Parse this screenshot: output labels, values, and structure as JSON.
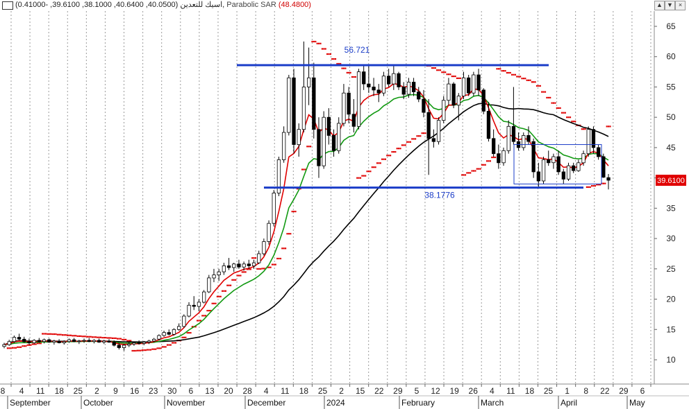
{
  "title_bar": {
    "symbol": "اسيك للتعدين",
    "ohlc": "(40.0500, 40.6400, 38.1000, 39.6100, -0.41000),",
    "indicator": "Parabolic SAR",
    "indicator_value": "(48.4800)"
  },
  "colors": {
    "up_candle": "#ffffff",
    "down_candle": "#000000",
    "ma_red": "#e00000",
    "ma_green": "#119911",
    "ma_black": "#000000",
    "sar": "#e00000",
    "annotation": "#1a3cc8",
    "last_price_bg": "#e00000"
  },
  "chart_data": {
    "type": "candlestick",
    "y_axis": {
      "min": 5,
      "max": 67,
      "ticks": [
        10,
        15,
        20,
        25,
        30,
        35,
        40,
        45,
        50,
        55,
        60,
        65
      ],
      "position": "right"
    },
    "x_day_labels": [
      "8",
      "4",
      "11",
      "18",
      "25",
      "2",
      "9",
      "16",
      "23",
      "30",
      "6",
      "13",
      "20",
      "28",
      "4",
      "11",
      "18",
      "25",
      "2",
      "15",
      "22",
      "29",
      "5",
      "12",
      "19",
      "26",
      "4",
      "11",
      "18",
      "25",
      "1",
      "8",
      "22",
      "29",
      "6"
    ],
    "x_month_labels": [
      "September",
      "October",
      "November",
      "December",
      "2024",
      "February",
      "March",
      "April",
      "May"
    ],
    "candles": [
      [
        12.2,
        12.8,
        11.9,
        12.5
      ],
      [
        12.5,
        13.3,
        12.3,
        13.0
      ],
      [
        13.0,
        14.0,
        12.8,
        13.7
      ],
      [
        13.7,
        14.3,
        13.2,
        13.4
      ],
      [
        13.4,
        13.8,
        12.8,
        13.0
      ],
      [
        13.0,
        13.5,
        12.5,
        12.8
      ],
      [
        12.8,
        13.4,
        12.6,
        13.2
      ],
      [
        13.2,
        13.6,
        12.8,
        13.0
      ],
      [
        13.0,
        13.5,
        12.7,
        13.3
      ],
      [
        13.3,
        13.5,
        12.8,
        12.9
      ],
      [
        12.9,
        13.3,
        12.5,
        13.1
      ],
      [
        13.1,
        13.4,
        12.7,
        12.8
      ],
      [
        12.8,
        13.2,
        12.5,
        13.0
      ],
      [
        13.0,
        13.5,
        12.8,
        13.3
      ],
      [
        13.3,
        13.6,
        12.9,
        13.0
      ],
      [
        13.0,
        13.3,
        12.6,
        13.1
      ],
      [
        13.1,
        13.5,
        12.8,
        13.2
      ],
      [
        13.2,
        13.6,
        12.9,
        13.0
      ],
      [
        13.0,
        13.4,
        12.7,
        13.2
      ],
      [
        13.2,
        13.5,
        12.8,
        12.9
      ],
      [
        12.9,
        13.3,
        12.6,
        13.1
      ],
      [
        13.1,
        13.4,
        12.8,
        12.9
      ],
      [
        12.9,
        13.2,
        12.2,
        12.4
      ],
      [
        12.4,
        12.8,
        11.7,
        12.0
      ],
      [
        12.0,
        12.6,
        11.5,
        12.4
      ],
      [
        12.4,
        12.9,
        12.1,
        12.6
      ],
      [
        12.6,
        13.0,
        12.3,
        12.8
      ],
      [
        12.8,
        13.2,
        12.5,
        12.7
      ],
      [
        12.7,
        13.1,
        12.4,
        12.9
      ],
      [
        12.9,
        13.3,
        12.6,
        13.1
      ],
      [
        13.1,
        13.6,
        12.9,
        13.4
      ],
      [
        13.4,
        14.2,
        13.2,
        14.0
      ],
      [
        14.0,
        14.8,
        13.8,
        14.5
      ],
      [
        14.5,
        15.0,
        14.0,
        14.2
      ],
      [
        14.2,
        15.2,
        14.0,
        15.0
      ],
      [
        15.0,
        16.0,
        14.8,
        15.5
      ],
      [
        15.5,
        17.5,
        15.3,
        17.2
      ],
      [
        17.2,
        19.5,
        17.0,
        19.0
      ],
      [
        19.0,
        20.5,
        18.2,
        18.8
      ],
      [
        18.8,
        20.0,
        18.0,
        19.5
      ],
      [
        19.5,
        21.5,
        19.3,
        21.2
      ],
      [
        21.2,
        24.0,
        21.0,
        23.5
      ],
      [
        23.5,
        25.0,
        22.8,
        24.0
      ],
      [
        24.0,
        25.0,
        23.0,
        24.5
      ],
      [
        24.5,
        26.0,
        24.0,
        25.5
      ],
      [
        25.5,
        26.8,
        24.8,
        25.2
      ],
      [
        25.2,
        26.0,
        24.5,
        25.8
      ],
      [
        25.8,
        26.5,
        25.0,
        25.3
      ],
      [
        25.3,
        26.2,
        24.7,
        25.8
      ],
      [
        25.8,
        26.5,
        25.0,
        25.5
      ],
      [
        25.5,
        26.5,
        25.0,
        26.0
      ],
      [
        26.0,
        28.0,
        25.8,
        27.5
      ],
      [
        27.5,
        30.0,
        27.2,
        29.5
      ],
      [
        29.5,
        33.0,
        29.0,
        32.5
      ],
      [
        32.5,
        38.0,
        32.0,
        37.5
      ],
      [
        37.5,
        43.5,
        37.0,
        43.0
      ],
      [
        43.0,
        48.5,
        42.5,
        47.5
      ],
      [
        47.5,
        57.0,
        47.0,
        56.5
      ],
      [
        56.5,
        58.0,
        44.0,
        45.5
      ],
      [
        45.5,
        49.0,
        43.5,
        48.0
      ],
      [
        48.0,
        62.5,
        47.5,
        55.0
      ],
      [
        55.0,
        61.5,
        52.0,
        56.5
      ],
      [
        56.5,
        59.0,
        46.5,
        48.0
      ],
      [
        48.0,
        50.0,
        40.0,
        42.0
      ],
      [
        42.0,
        51.0,
        41.5,
        50.0
      ],
      [
        50.0,
        51.5,
        45.5,
        47.0
      ],
      [
        47.0,
        48.0,
        43.5,
        44.5
      ],
      [
        44.5,
        50.0,
        44.0,
        49.0
      ],
      [
        49.0,
        55.5,
        48.5,
        54.0
      ],
      [
        54.0,
        55.0,
        49.0,
        50.5
      ],
      [
        50.5,
        53.0,
        47.5,
        48.5
      ],
      [
        48.5,
        58.0,
        48.0,
        57.5
      ],
      [
        57.5,
        58.5,
        54.5,
        55.5
      ],
      [
        55.5,
        58.5,
        54.0,
        55.0
      ],
      [
        55.0,
        56.5,
        53.5,
        54.5
      ],
      [
        54.5,
        55.5,
        52.5,
        54.0
      ],
      [
        54.0,
        57.5,
        53.5,
        56.8
      ],
      [
        56.8,
        58.0,
        55.0,
        55.5
      ],
      [
        55.5,
        58.5,
        54.5,
        57.2
      ],
      [
        57.2,
        57.5,
        54.5,
        55.0
      ],
      [
        55.0,
        55.8,
        53.0,
        53.8
      ],
      [
        53.8,
        56.5,
        53.2,
        55.8
      ],
      [
        55.8,
        56.5,
        53.5,
        54.2
      ],
      [
        54.2,
        55.0,
        52.5,
        53.0
      ],
      [
        53.0,
        54.5,
        50.0,
        50.8
      ],
      [
        50.8,
        53.0,
        40.5,
        46.5
      ],
      [
        46.5,
        48.0,
        45.0,
        46.0
      ],
      [
        46.0,
        50.0,
        45.5,
        49.5
      ],
      [
        49.5,
        53.5,
        49.0,
        52.8
      ],
      [
        52.8,
        56.5,
        52.0,
        55.5
      ],
      [
        55.5,
        55.8,
        51.5,
        52.0
      ],
      [
        52.0,
        54.0,
        49.5,
        53.5
      ],
      [
        53.5,
        57.5,
        53.0,
        56.5
      ],
      [
        56.5,
        57.0,
        53.5,
        54.0
      ],
      [
        54.0,
        57.5,
        53.5,
        57.0
      ],
      [
        57.0,
        58.0,
        53.5,
        54.5
      ],
      [
        54.5,
        54.8,
        50.5,
        51.0
      ],
      [
        51.0,
        52.5,
        46.0,
        46.5
      ],
      [
        46.5,
        48.0,
        43.5,
        44.0
      ],
      [
        44.0,
        45.5,
        41.5,
        42.5
      ],
      [
        42.5,
        45.0,
        42.0,
        44.5
      ],
      [
        44.5,
        49.5,
        44.0,
        48.5
      ],
      [
        48.5,
        55.0,
        45.5,
        46.0
      ],
      [
        46.0,
        47.5,
        44.5,
        45.0
      ],
      [
        45.0,
        47.5,
        44.5,
        47.0
      ],
      [
        47.0,
        48.5,
        45.5,
        46.0
      ],
      [
        46.0,
        46.5,
        40.0,
        41.0
      ],
      [
        41.0,
        42.5,
        38.5,
        39.5
      ],
      [
        39.5,
        43.5,
        39.0,
        43.0
      ],
      [
        43.0,
        44.5,
        42.0,
        42.5
      ],
      [
        42.5,
        44.0,
        41.5,
        43.5
      ],
      [
        43.5,
        44.5,
        40.5,
        41.0
      ],
      [
        41.0,
        41.5,
        39.0,
        39.8
      ],
      [
        39.8,
        42.5,
        39.5,
        42.0
      ],
      [
        42.0,
        42.5,
        40.8,
        41.2
      ],
      [
        41.2,
        43.0,
        41.0,
        42.5
      ],
      [
        42.5,
        44.5,
        42.0,
        44.0
      ],
      [
        44.0,
        48.5,
        43.5,
        48.0
      ],
      [
        48.0,
        48.5,
        44.0,
        45.0
      ],
      [
        45.0,
        45.5,
        43.0,
        43.5
      ],
      [
        43.5,
        44.0,
        40.0,
        40.1
      ],
      [
        40.05,
        40.64,
        38.1,
        39.61
      ]
    ],
    "series": [
      {
        "name": "Parabolic SAR",
        "style": "dots"
      },
      {
        "name": "",
        "style": "line",
        "color": "red"
      },
      {
        "name": "",
        "style": "line",
        "color": "green"
      },
      {
        "name": "",
        "style": "line",
        "color": "black"
      }
    ],
    "annotations": [
      {
        "type": "hline",
        "value": 58.6,
        "label": "56.721"
      },
      {
        "type": "hline",
        "value": 38.4,
        "label": "38.1776"
      },
      {
        "type": "box",
        "y_from": 39.0,
        "y_to": 45.5
      }
    ],
    "last_price": "39.6100",
    "grid": "vertical dotted",
    "legend": "none"
  },
  "window_controls": {
    "restore": "▲",
    "minimize": "▼",
    "close": "×"
  }
}
